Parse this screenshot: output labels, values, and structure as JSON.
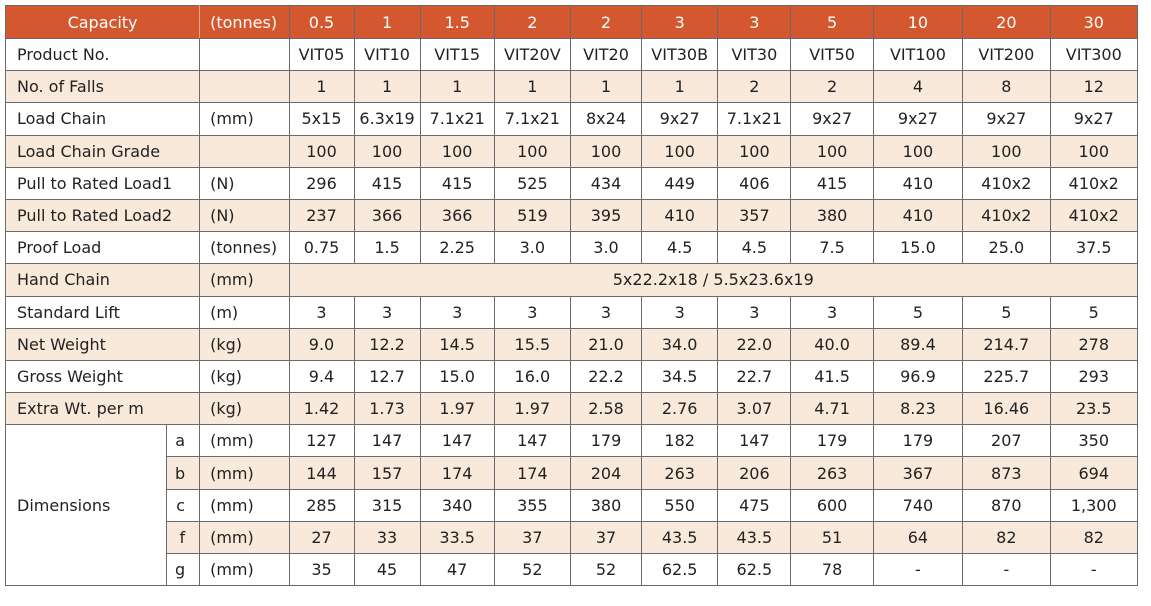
{
  "header": {
    "title": "Capacity",
    "unit": "(tonnes)",
    "values": [
      "0.5",
      "1",
      "1.5",
      "2",
      "2",
      "3",
      "3",
      "5",
      "10",
      "20",
      "30"
    ]
  },
  "rows": [
    {
      "label": "Product No.",
      "unit": "",
      "values": [
        "VIT05",
        "VIT10",
        "VIT15",
        "VIT20V",
        "VIT20",
        "VIT30B",
        "VIT30",
        "VIT50",
        "VIT100",
        "VIT200",
        "VIT300"
      ]
    },
    {
      "label": "No. of Falls",
      "unit": "",
      "values": [
        "1",
        "1",
        "1",
        "1",
        "1",
        "1",
        "2",
        "2",
        "4",
        "8",
        "12"
      ]
    },
    {
      "label": "Load Chain",
      "unit": "(mm)",
      "values": [
        "5x15",
        "6.3x19",
        "7.1x21",
        "7.1x21",
        "8x24",
        "9x27",
        "7.1x21",
        "9x27",
        "9x27",
        "9x27",
        "9x27"
      ]
    },
    {
      "label": "Load Chain Grade",
      "unit": "",
      "values": [
        "100",
        "100",
        "100",
        "100",
        "100",
        "100",
        "100",
        "100",
        "100",
        "100",
        "100"
      ]
    },
    {
      "label": "Pull to Rated Load1",
      "unit": "(N)",
      "values": [
        "296",
        "415",
        "415",
        "525",
        "434",
        "449",
        "406",
        "415",
        "410",
        "410x2",
        "410x2"
      ]
    },
    {
      "label": "Pull to Rated Load2",
      "unit": "(N)",
      "values": [
        "237",
        "366",
        "366",
        "519",
        "395",
        "410",
        "357",
        "380",
        "410",
        "410x2",
        "410x2"
      ]
    },
    {
      "label": "Proof Load",
      "unit": "(tonnes)",
      "values": [
        "0.75",
        "1.5",
        "2.25",
        "3.0",
        "3.0",
        "4.5",
        "4.5",
        "7.5",
        "15.0",
        "25.0",
        "37.5"
      ]
    },
    {
      "label": "Hand Chain",
      "unit": "(mm)",
      "span_value": "5x22.2x18 / 5.5x23.6x19"
    },
    {
      "label": "Standard Lift",
      "unit": "(m)",
      "values": [
        "3",
        "3",
        "3",
        "3",
        "3",
        "3",
        "3",
        "3",
        "5",
        "5",
        "5"
      ]
    },
    {
      "label": "Net Weight",
      "unit": "(kg)",
      "values": [
        "9.0",
        "12.2",
        "14.5",
        "15.5",
        "21.0",
        "34.0",
        "22.0",
        "40.0",
        "89.4",
        "214.7",
        "278"
      ]
    },
    {
      "label": "Gross Weight",
      "unit": "(kg)",
      "values": [
        "9.4",
        "12.7",
        "15.0",
        "16.0",
        "22.2",
        "34.5",
        "22.7",
        "41.5",
        "96.9",
        "225.7",
        "293"
      ]
    },
    {
      "label": "Extra Wt. per m",
      "unit": "(kg)",
      "values": [
        "1.42",
        "1.73",
        "1.97",
        "1.97",
        "2.58",
        "2.76",
        "3.07",
        "4.71",
        "8.23",
        "16.46",
        "23.5"
      ]
    }
  ],
  "dimensions": {
    "label": "Dimensions",
    "rows": [
      {
        "sub": "a",
        "unit": "(mm)",
        "values": [
          "127",
          "147",
          "147",
          "147",
          "179",
          "182",
          "147",
          "179",
          "179",
          "207",
          "350"
        ]
      },
      {
        "sub": "b",
        "unit": "(mm)",
        "values": [
          "144",
          "157",
          "174",
          "174",
          "204",
          "263",
          "206",
          "263",
          "367",
          "873",
          "694"
        ]
      },
      {
        "sub": "c",
        "unit": "(mm)",
        "values": [
          "285",
          "315",
          "340",
          "355",
          "380",
          "550",
          "475",
          "600",
          "740",
          "870",
          "1,300"
        ]
      },
      {
        "sub": "f",
        "unit": "(mm)",
        "values": [
          "27",
          "33",
          "33.5",
          "37",
          "37",
          "43.5",
          "43.5",
          "51",
          "64",
          "82",
          "82"
        ]
      },
      {
        "sub": "g",
        "unit": "(mm)",
        "values": [
          "35",
          "45",
          "47",
          "52",
          "52",
          "62.5",
          "62.5",
          "78",
          "-",
          "-",
          "-"
        ]
      }
    ]
  },
  "colors": {
    "header_bg": "#d4582f",
    "header_text": "#ffffff",
    "stripe_bg": "#f8e9da",
    "border": "#6a6a6a"
  }
}
